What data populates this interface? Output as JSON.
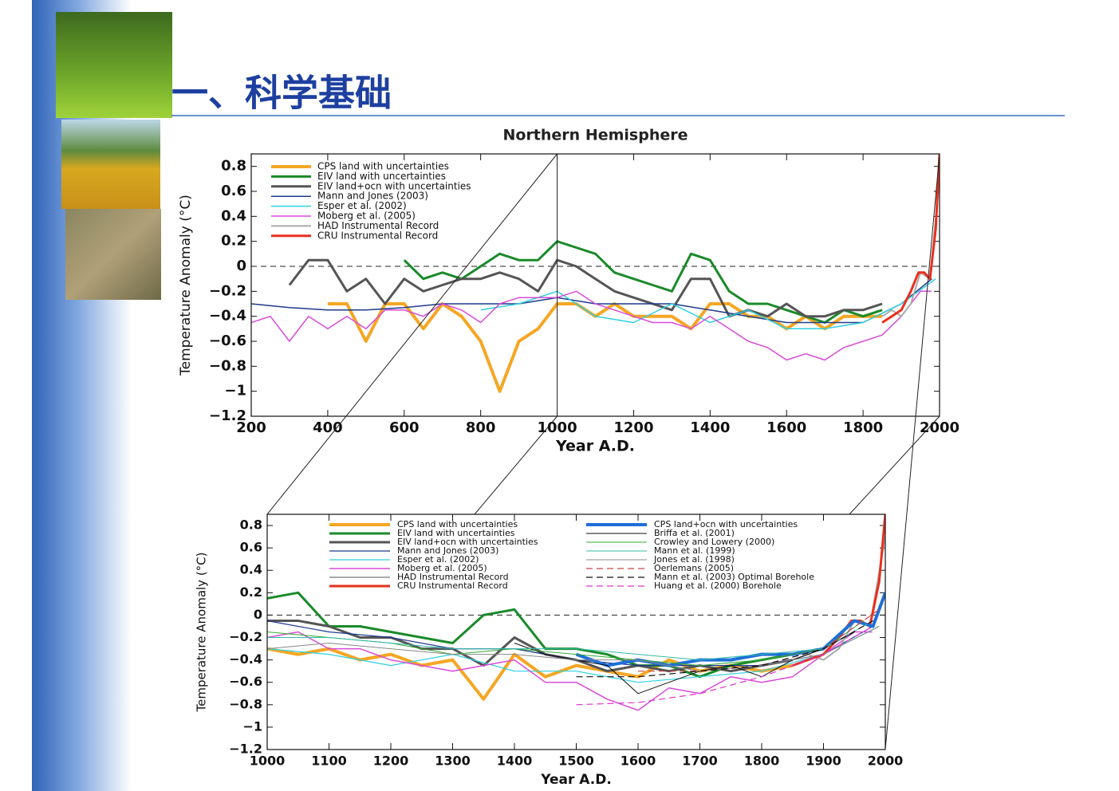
{
  "header": {
    "title": "一、科学基础"
  },
  "chart_data": [
    {
      "type": "line",
      "title": "Northern Hemisphere",
      "xlabel": "Year A.D.",
      "ylabel": "Temperature Anomaly (°C)",
      "xlim": [
        200,
        2000
      ],
      "ylim": [
        -1.2,
        0.9
      ],
      "xticks": [
        200,
        400,
        600,
        800,
        1000,
        1200,
        1400,
        1600,
        1800,
        2000
      ],
      "yticks": [
        {
          "value": -1.2,
          "label": "−1.2"
        },
        {
          "value": -1,
          "label": "−1"
        },
        {
          "value": -0.8,
          "label": "−0.8"
        },
        {
          "value": -0.6,
          "label": "−0.6"
        },
        {
          "value": -0.4,
          "label": "−0.4"
        },
        {
          "value": -0.2,
          "label": "−0.2"
        },
        0,
        0.2,
        0.4,
        0.6,
        0.8
      ],
      "series": [
        {
          "name": "CPS land with uncertainties",
          "color": "#f5a623",
          "width": 4,
          "x": [
            400,
            450,
            500,
            550,
            600,
            650,
            700,
            750,
            800,
            850,
            900,
            950,
            1000,
            1050,
            1100,
            1150,
            1200,
            1250,
            1300,
            1350,
            1400,
            1450,
            1500,
            1550,
            1600,
            1650,
            1700,
            1750,
            1800,
            1850
          ],
          "values": [
            -0.3,
            -0.3,
            -0.6,
            -0.3,
            -0.3,
            -0.5,
            -0.3,
            -0.4,
            -0.6,
            -1.0,
            -0.6,
            -0.5,
            -0.3,
            -0.3,
            -0.4,
            -0.3,
            -0.4,
            -0.4,
            -0.4,
            -0.5,
            -0.3,
            -0.3,
            -0.4,
            -0.4,
            -0.5,
            -0.4,
            -0.5,
            -0.4,
            -0.4,
            -0.4
          ]
        },
        {
          "name": "EIV land with uncertainties",
          "color": "#1a8a2a",
          "width": 3,
          "x": [
            600,
            650,
            700,
            750,
            800,
            850,
            900,
            950,
            1000,
            1050,
            1100,
            1150,
            1200,
            1250,
            1300,
            1350,
            1400,
            1450,
            1500,
            1550,
            1600,
            1650,
            1700,
            1750,
            1800,
            1850
          ],
          "values": [
            0.05,
            -0.1,
            -0.05,
            -0.1,
            0.0,
            0.1,
            0.05,
            0.05,
            0.2,
            0.15,
            0.1,
            -0.05,
            -0.1,
            -0.15,
            -0.2,
            0.1,
            0.05,
            -0.2,
            -0.3,
            -0.3,
            -0.35,
            -0.4,
            -0.45,
            -0.35,
            -0.4,
            -0.35
          ]
        },
        {
          "name": "EIV land+ocn with uncertainties",
          "color": "#555555",
          "width": 3,
          "x": [
            300,
            350,
            400,
            450,
            500,
            550,
            600,
            650,
            700,
            750,
            800,
            850,
            900,
            950,
            1000,
            1050,
            1100,
            1150,
            1200,
            1250,
            1300,
            1350,
            1400,
            1450,
            1500,
            1550,
            1600,
            1650,
            1700,
            1750,
            1800,
            1850
          ],
          "values": [
            -0.15,
            0.05,
            0.05,
            -0.2,
            -0.1,
            -0.3,
            -0.1,
            -0.2,
            -0.15,
            -0.1,
            -0.1,
            -0.05,
            -0.1,
            -0.2,
            0.05,
            0.0,
            -0.1,
            -0.2,
            -0.25,
            -0.3,
            -0.35,
            -0.1,
            -0.1,
            -0.4,
            -0.35,
            -0.4,
            -0.3,
            -0.4,
            -0.4,
            -0.35,
            -0.35,
            -0.3
          ]
        },
        {
          "name": "Mann and Jones (2003)",
          "color": "#1f3a8a",
          "width": 1.5,
          "x": [
            200,
            300,
            400,
            500,
            600,
            700,
            800,
            900,
            1000,
            1100,
            1200,
            1300,
            1400,
            1500,
            1600,
            1700,
            1800,
            1900,
            1980
          ],
          "values": [
            -0.3,
            -0.33,
            -0.35,
            -0.35,
            -0.33,
            -0.3,
            -0.3,
            -0.3,
            -0.25,
            -0.3,
            -0.3,
            -0.3,
            -0.35,
            -0.4,
            -0.45,
            -0.45,
            -0.45,
            -0.3,
            -0.1
          ]
        },
        {
          "name": "Esper et al. (2002)",
          "color": "#2fd0e0",
          "width": 1.5,
          "x": [
            800,
            900,
            1000,
            1100,
            1200,
            1300,
            1400,
            1500,
            1600,
            1700,
            1800,
            1900,
            1990
          ],
          "values": [
            -0.35,
            -0.3,
            -0.2,
            -0.4,
            -0.45,
            -0.3,
            -0.45,
            -0.35,
            -0.5,
            -0.5,
            -0.45,
            -0.3,
            -0.1
          ]
        },
        {
          "name": "Moberg et al. (2005)",
          "color": "#d84bd8",
          "width": 1.5,
          "x": [
            200,
            250,
            300,
            350,
            400,
            450,
            500,
            550,
            600,
            650,
            700,
            750,
            800,
            850,
            900,
            950,
            1000,
            1050,
            1100,
            1150,
            1200,
            1250,
            1300,
            1350,
            1400,
            1450,
            1500,
            1550,
            1600,
            1650,
            1700,
            1750,
            1800,
            1850,
            1900,
            1950,
            1979
          ],
          "values": [
            -0.45,
            -0.4,
            -0.6,
            -0.4,
            -0.5,
            -0.4,
            -0.5,
            -0.35,
            -0.35,
            -0.4,
            -0.3,
            -0.35,
            -0.45,
            -0.3,
            -0.25,
            -0.25,
            -0.25,
            -0.2,
            -0.3,
            -0.35,
            -0.4,
            -0.45,
            -0.45,
            -0.5,
            -0.4,
            -0.5,
            -0.6,
            -0.65,
            -0.75,
            -0.7,
            -0.75,
            -0.65,
            -0.6,
            -0.55,
            -0.4,
            -0.2,
            -0.2
          ]
        },
        {
          "name": "HAD Instrumental Record",
          "color": "#aaaaaa",
          "width": 2,
          "x": [
            1850,
            1875,
            1900,
            1925,
            1950,
            1975,
            2000
          ],
          "values": [
            -0.4,
            -0.35,
            -0.4,
            -0.3,
            -0.05,
            -0.1,
            0.7
          ]
        },
        {
          "name": "CRU Instrumental Record",
          "color": "#e8301e",
          "width": 3,
          "x": [
            1850,
            1875,
            1900,
            1925,
            1945,
            1960,
            1975,
            1990,
            2000
          ],
          "values": [
            -0.45,
            -0.4,
            -0.35,
            -0.2,
            -0.05,
            -0.05,
            -0.1,
            0.3,
            0.9
          ]
        }
      ]
    },
    {
      "type": "line",
      "xlabel": "Year A.D.",
      "ylabel": "Temperature Anomaly (°C)",
      "xlim": [
        1000,
        2000
      ],
      "ylim": [
        -1.2,
        0.9
      ],
      "xticks": [
        1000,
        1100,
        1200,
        1300,
        1400,
        1500,
        1600,
        1700,
        1800,
        1900,
        2000
      ],
      "yticks": [
        {
          "value": -1.2,
          "label": "−1.2"
        },
        {
          "value": -1,
          "label": "−1"
        },
        {
          "value": -0.8,
          "label": "−0.8"
        },
        {
          "value": -0.6,
          "label": "−0.6"
        },
        {
          "value": -0.4,
          "label": "−0.4"
        },
        {
          "value": -0.2,
          "label": "−0.2"
        },
        0,
        0.2,
        0.4,
        0.6,
        0.8
      ],
      "series": [
        {
          "name": "CPS land with uncertainties",
          "color": "#f5a623",
          "width": 4,
          "x": [
            1000,
            1050,
            1100,
            1150,
            1200,
            1250,
            1300,
            1350,
            1400,
            1450,
            1500,
            1550,
            1600,
            1650,
            1700,
            1750,
            1800,
            1850
          ],
          "values": [
            -0.3,
            -0.35,
            -0.3,
            -0.4,
            -0.35,
            -0.45,
            -0.4,
            -0.75,
            -0.35,
            -0.55,
            -0.45,
            -0.5,
            -0.55,
            -0.4,
            -0.5,
            -0.45,
            -0.5,
            -0.45
          ]
        },
        {
          "name": "EIV land with uncertainties",
          "color": "#1a8a2a",
          "width": 3,
          "x": [
            1000,
            1050,
            1100,
            1150,
            1200,
            1250,
            1300,
            1350,
            1400,
            1450,
            1500,
            1550,
            1600,
            1650,
            1700,
            1750,
            1800,
            1850
          ],
          "values": [
            0.15,
            0.2,
            -0.1,
            -0.1,
            -0.15,
            -0.2,
            -0.25,
            0.0,
            0.05,
            -0.3,
            -0.3,
            -0.35,
            -0.45,
            -0.45,
            -0.55,
            -0.45,
            -0.4,
            -0.35
          ]
        },
        {
          "name": "EIV land+ocn with uncertainties",
          "color": "#555555",
          "width": 3,
          "x": [
            1000,
            1050,
            1100,
            1150,
            1200,
            1250,
            1300,
            1350,
            1400,
            1450,
            1500,
            1550,
            1600,
            1650,
            1700,
            1750,
            1800,
            1850
          ],
          "values": [
            -0.05,
            -0.05,
            -0.1,
            -0.2,
            -0.2,
            -0.3,
            -0.3,
            -0.45,
            -0.2,
            -0.35,
            -0.4,
            -0.5,
            -0.45,
            -0.5,
            -0.45,
            -0.5,
            -0.45,
            -0.4
          ]
        },
        {
          "name": "Mann and Jones (2003)",
          "color": "#1f3a8a",
          "width": 1.2,
          "x": [
            1000,
            1100,
            1200,
            1300,
            1400,
            1500,
            1600,
            1700,
            1800,
            1900,
            1980
          ],
          "values": [
            -0.05,
            -0.15,
            -0.2,
            -0.3,
            -0.3,
            -0.4,
            -0.45,
            -0.45,
            -0.45,
            -0.35,
            -0.1
          ]
        },
        {
          "name": "Esper et al. (2002)",
          "color": "#2fd0e0",
          "width": 1.2,
          "x": [
            1000,
            1100,
            1200,
            1300,
            1400,
            1500,
            1600,
            1700,
            1800,
            1900,
            1990
          ],
          "values": [
            -0.3,
            -0.35,
            -0.45,
            -0.35,
            -0.5,
            -0.5,
            -0.6,
            -0.55,
            -0.5,
            -0.35,
            -0.1
          ]
        },
        {
          "name": "Moberg et al. (2005)",
          "color": "#d84bd8",
          "width": 1.5,
          "x": [
            1000,
            1050,
            1100,
            1150,
            1200,
            1250,
            1300,
            1350,
            1400,
            1450,
            1500,
            1550,
            1600,
            1650,
            1700,
            1750,
            1800,
            1850,
            1900,
            1950,
            1979
          ],
          "values": [
            -0.2,
            -0.15,
            -0.3,
            -0.3,
            -0.4,
            -0.45,
            -0.5,
            -0.45,
            -0.4,
            -0.6,
            -0.6,
            -0.75,
            -0.85,
            -0.65,
            -0.7,
            -0.55,
            -0.6,
            -0.55,
            -0.35,
            -0.15,
            -0.15
          ]
        },
        {
          "name": "HAD Instrumental Record",
          "color": "#aaaaaa",
          "width": 2,
          "x": [
            1850,
            1875,
            1900,
            1925,
            1950,
            1975,
            2000
          ],
          "values": [
            -0.4,
            -0.35,
            -0.4,
            -0.3,
            -0.05,
            -0.1,
            0.7
          ]
        },
        {
          "name": "CRU Instrumental Record",
          "color": "#e8301e",
          "width": 3,
          "x": [
            1850,
            1875,
            1900,
            1925,
            1945,
            1960,
            1975,
            1990,
            2000
          ],
          "values": [
            -0.45,
            -0.4,
            -0.35,
            -0.2,
            -0.05,
            -0.05,
            -0.1,
            0.3,
            0.9
          ]
        },
        {
          "name": "CPS land+ocn with uncertainties",
          "color": "#1e6fd9",
          "width": 4,
          "x": [
            1500,
            1550,
            1600,
            1650,
            1700,
            1750,
            1800,
            1850,
            1900,
            1950,
            1980,
            2000
          ],
          "values": [
            -0.35,
            -0.45,
            -0.4,
            -0.45,
            -0.4,
            -0.4,
            -0.35,
            -0.35,
            -0.3,
            -0.05,
            -0.1,
            0.2
          ]
        },
        {
          "name": "Briffa et al. (2001)",
          "color": "#111111",
          "width": 1,
          "x": [
            1400,
            1450,
            1500,
            1550,
            1600,
            1650,
            1700,
            1750,
            1800,
            1850,
            1900,
            1950
          ],
          "values": [
            -0.25,
            -0.35,
            -0.4,
            -0.45,
            -0.7,
            -0.6,
            -0.5,
            -0.45,
            -0.55,
            -0.4,
            -0.3,
            -0.15
          ]
        },
        {
          "name": "Crowley and Lowery (2000)",
          "color": "#33aa33",
          "width": 1,
          "x": [
            1000,
            1100,
            1200,
            1300,
            1400,
            1500,
            1600,
            1700,
            1800,
            1900,
            1965
          ],
          "values": [
            -0.15,
            -0.2,
            -0.25,
            -0.35,
            -0.3,
            -0.35,
            -0.4,
            -0.45,
            -0.4,
            -0.3,
            -0.05
          ]
        },
        {
          "name": "Mann et al. (1999)",
          "color": "#33bbaa",
          "width": 1,
          "x": [
            1000,
            1100,
            1200,
            1300,
            1400,
            1500,
            1600,
            1700,
            1800,
            1900,
            1980
          ],
          "values": [
            -0.2,
            -0.2,
            -0.25,
            -0.3,
            -0.3,
            -0.3,
            -0.35,
            -0.4,
            -0.35,
            -0.3,
            -0.05
          ]
        },
        {
          "name": "Jones et al. (1998)",
          "color": "#888888",
          "width": 1,
          "x": [
            1000,
            1100,
            1200,
            1300,
            1400,
            1500,
            1600,
            1700,
            1800,
            1900,
            1990
          ],
          "values": [
            -0.3,
            -0.25,
            -0.3,
            -0.35,
            -0.35,
            -0.4,
            -0.4,
            -0.5,
            -0.45,
            -0.35,
            -0.1
          ]
        },
        {
          "name": "Oerlemans (2005)",
          "color": "#cc4444",
          "width": 1.2,
          "dash": "8 5",
          "x": [
            1600,
            1700,
            1800,
            1900,
            1990
          ],
          "values": [
            -0.5,
            -0.5,
            -0.45,
            -0.3,
            0.05
          ]
        },
        {
          "name": "Mann et al. (2003) Optimal Borehole",
          "color": "#111111",
          "width": 1.2,
          "dash": "8 5",
          "x": [
            1500,
            1600,
            1700,
            1800,
            1900,
            1980
          ],
          "values": [
            -0.55,
            -0.55,
            -0.5,
            -0.45,
            -0.3,
            -0.05
          ]
        },
        {
          "name": "Huang et al. (2000) Borehole",
          "color": "#dd33cc",
          "width": 1.2,
          "dash": "8 5",
          "x": [
            1500,
            1600,
            1700,
            1800,
            1900,
            1980
          ],
          "values": [
            -0.8,
            -0.78,
            -0.7,
            -0.55,
            -0.35,
            -0.1
          ]
        }
      ]
    }
  ]
}
